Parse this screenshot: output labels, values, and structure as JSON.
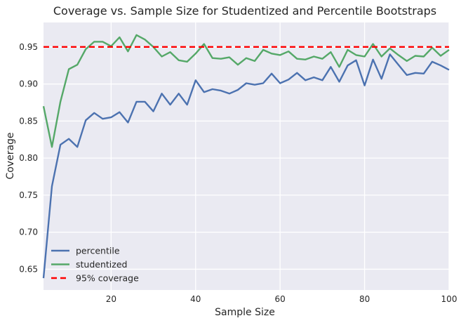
{
  "chart_data": {
    "type": "line",
    "title": "Coverage vs. Sample Size for Studentized and Percentile Bootstraps",
    "xlabel": "Sample Size",
    "ylabel": "Coverage",
    "xlim": [
      4,
      100
    ],
    "ylim": [
      0.622,
      0.983
    ],
    "xticks": [
      20,
      40,
      60,
      80,
      100
    ],
    "yticks": [
      0.65,
      0.7,
      0.75,
      0.8,
      0.85,
      0.9,
      0.95
    ],
    "ytick_labels": [
      "0.65",
      "0.70",
      "0.75",
      "0.80",
      "0.85",
      "0.90",
      "0.95"
    ],
    "grid": true,
    "background": "#eaeaf2",
    "legend_position": "lower-left",
    "x": [
      4,
      6,
      8,
      10,
      12,
      14,
      16,
      18,
      20,
      22,
      24,
      26,
      28,
      30,
      32,
      34,
      36,
      38,
      40,
      42,
      44,
      46,
      48,
      50,
      52,
      54,
      56,
      58,
      60,
      62,
      64,
      66,
      68,
      70,
      72,
      74,
      76,
      78,
      80,
      82,
      84,
      86,
      88,
      90,
      92,
      94,
      96,
      98,
      100
    ],
    "series": [
      {
        "name": "percentile",
        "color": "#4c72b0",
        "style": "solid",
        "values": [
          0.638,
          0.762,
          0.818,
          0.826,
          0.815,
          0.851,
          0.861,
          0.853,
          0.855,
          0.862,
          0.848,
          0.876,
          0.876,
          0.863,
          0.887,
          0.872,
          0.887,
          0.872,
          0.905,
          0.889,
          0.893,
          0.891,
          0.887,
          0.892,
          0.901,
          0.899,
          0.901,
          0.914,
          0.901,
          0.906,
          0.915,
          0.905,
          0.909,
          0.905,
          0.923,
          0.903,
          0.925,
          0.932,
          0.898,
          0.933,
          0.907,
          0.94,
          0.926,
          0.912,
          0.915,
          0.914,
          0.93,
          0.925,
          0.919
        ]
      },
      {
        "name": "studentized",
        "color": "#55a868",
        "style": "solid",
        "values": [
          0.87,
          0.815,
          0.876,
          0.92,
          0.926,
          0.947,
          0.957,
          0.957,
          0.951,
          0.963,
          0.944,
          0.966,
          0.96,
          0.95,
          0.937,
          0.943,
          0.932,
          0.93,
          0.941,
          0.954,
          0.935,
          0.934,
          0.936,
          0.926,
          0.935,
          0.931,
          0.946,
          0.941,
          0.939,
          0.944,
          0.934,
          0.933,
          0.937,
          0.934,
          0.943,
          0.923,
          0.946,
          0.939,
          0.937,
          0.954,
          0.937,
          0.948,
          0.939,
          0.931,
          0.938,
          0.937,
          0.949,
          0.938,
          0.946
        ]
      }
    ],
    "reference_line": {
      "name": "95% coverage",
      "y": 0.95,
      "color": "#ff0000",
      "style": "dashed"
    }
  }
}
